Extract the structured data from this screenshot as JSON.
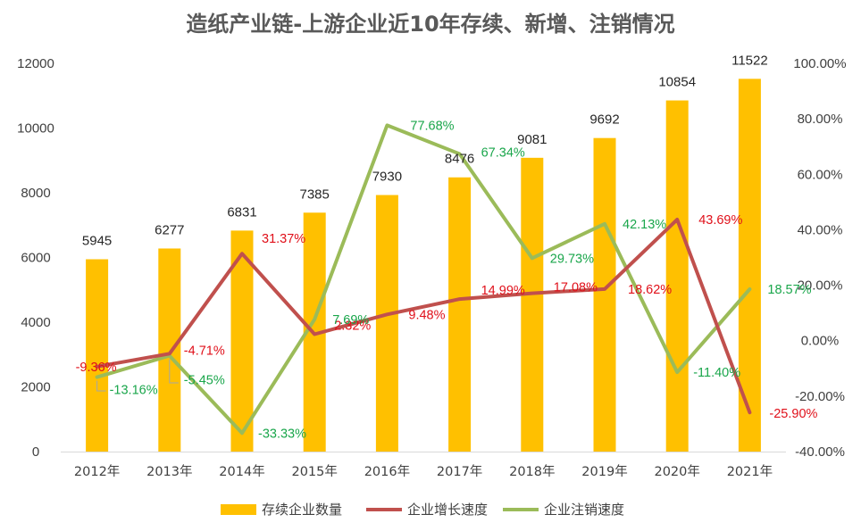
{
  "chart_data": {
    "type": "bar+line",
    "title": "造纸产业链-上游企业近10年存续、新增、注销情况",
    "categories": [
      "2012年",
      "2013年",
      "2014年",
      "2015年",
      "2016年",
      "2017年",
      "2018年",
      "2019年",
      "2020年",
      "2021年"
    ],
    "left_axis": {
      "min": 0,
      "max": 12000,
      "step": 2000,
      "ticks": [
        "0",
        "2000",
        "4000",
        "6000",
        "8000",
        "10000",
        "12000"
      ]
    },
    "right_axis": {
      "min": -40,
      "max": 100,
      "step": 20,
      "ticks": [
        "-40.00%",
        "-20.00%",
        "0.00%",
        "20.00%",
        "40.00%",
        "60.00%",
        "80.00%",
        "100.00%"
      ]
    },
    "series": [
      {
        "name": "存续企业数量",
        "type": "bar",
        "axis": "left",
        "color": "#ffc000",
        "values": [
          5945,
          6277,
          6831,
          7385,
          7930,
          8476,
          9081,
          9692,
          10854,
          11522
        ],
        "labels": [
          "5945",
          "6277",
          "6831",
          "7385",
          "7930",
          "8476",
          "9081",
          "9692",
          "10854",
          "11522"
        ]
      },
      {
        "name": "企业增长速度",
        "type": "line",
        "axis": "right",
        "color": "#c0504d",
        "label_color": "#e0101a",
        "values": [
          -9.36,
          -4.71,
          31.37,
          2.32,
          9.48,
          14.99,
          17.08,
          18.62,
          43.69,
          -25.9
        ],
        "labels": [
          "-9.36%",
          "-4.71%",
          "31.37%",
          "2.32%",
          "9.48%",
          "14.99%",
          "17.08%",
          "18.62%",
          "43.69%",
          "-25.90%"
        ]
      },
      {
        "name": "企业注销速度",
        "type": "line",
        "axis": "right",
        "color": "#9bbb59",
        "label_color": "#1aa64b",
        "values": [
          -13.16,
          -5.45,
          -33.33,
          7.69,
          77.68,
          67.34,
          29.73,
          42.13,
          -11.4,
          18.57
        ],
        "labels": [
          "-13.16%",
          "-5.45%",
          "-33.33%",
          "7.69%",
          "77.68%",
          "67.34%",
          "29.73%",
          "42.13%",
          "-11.40%",
          "18.57%"
        ]
      }
    ],
    "legend": {
      "position": "bottom",
      "items": [
        "存续企业数量",
        "企业增长速度",
        "企业注销速度"
      ]
    }
  }
}
